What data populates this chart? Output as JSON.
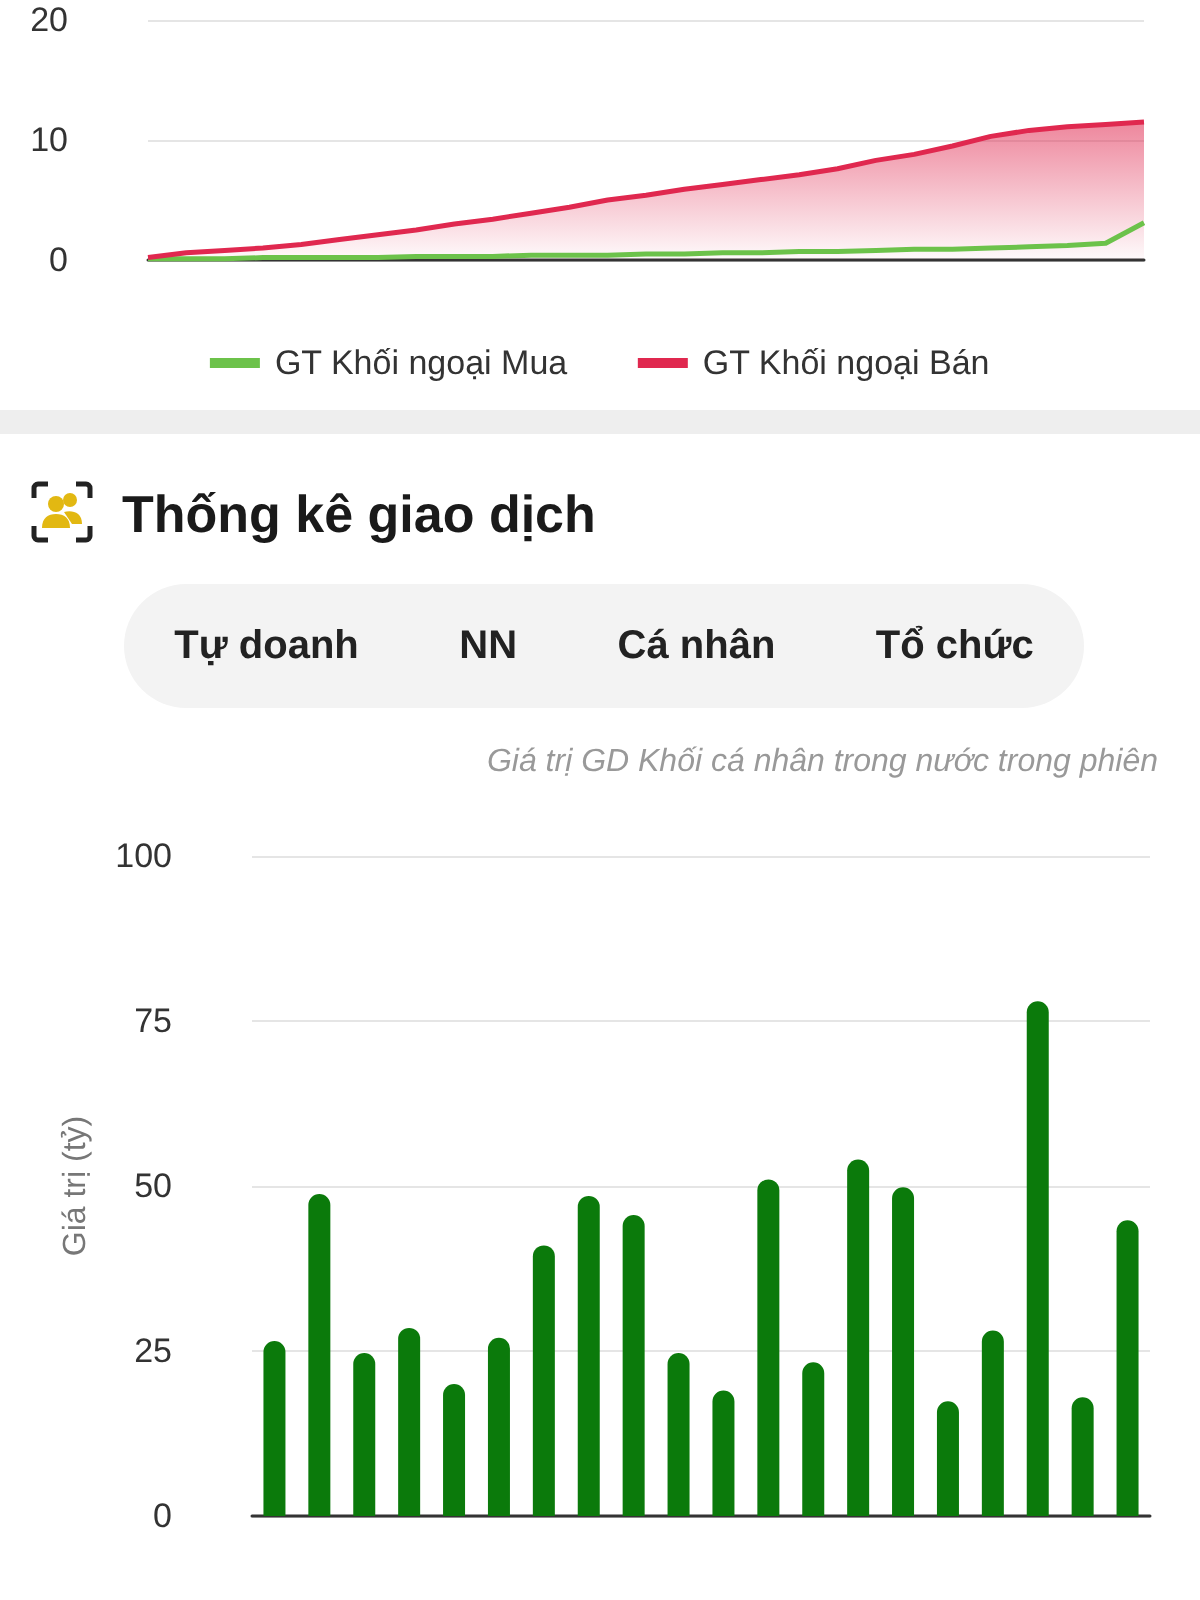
{
  "chart_data": [
    {
      "type": "line",
      "categories": [
        null,
        null,
        null,
        null,
        null,
        null,
        null,
        null,
        null,
        null,
        null,
        null,
        null,
        null,
        null,
        null,
        null,
        null,
        null,
        null,
        null,
        null,
        null,
        null,
        null,
        null,
        null
      ],
      "series": [
        {
          "name": "GT Khối ngoại Mua",
          "color": "#6cc24a",
          "type": "line",
          "values": [
            0.1,
            0.1,
            0.1,
            0.2,
            0.2,
            0.2,
            0.2,
            0.3,
            0.3,
            0.3,
            0.4,
            0.4,
            0.4,
            0.5,
            0.5,
            0.6,
            0.6,
            0.7,
            0.7,
            0.8,
            0.9,
            0.9,
            1.0,
            1.1,
            1.2,
            1.4,
            3.1
          ]
        },
        {
          "name": "GT Khối ngoại Bán",
          "color": "#e0284f",
          "type": "area",
          "values": [
            0.2,
            0.6,
            0.8,
            1.0,
            1.3,
            1.7,
            2.1,
            2.5,
            3.0,
            3.4,
            3.9,
            4.4,
            5.0,
            5.4,
            5.9,
            6.3,
            6.7,
            7.1,
            7.6,
            8.3,
            8.8,
            9.5,
            10.3,
            10.8,
            11.1,
            11.3,
            11.5
          ]
        }
      ],
      "ylim": [
        0,
        20
      ],
      "yticks": [
        0,
        10,
        20
      ],
      "grid": "y",
      "legend": "bottom",
      "tick_labels": "y"
    },
    {
      "type": "bar",
      "title": "Thống kê giao dịch",
      "subtitle": "Giá trị GD Khối cá nhân trong nước trong phiên",
      "ylabel": "Giá trị (tỷ)",
      "annotations": [
        "Tự doanh",
        "NN",
        "Cá nhân",
        "Tổ chức"
      ],
      "categories": [
        null,
        null,
        null,
        null,
        null,
        null,
        null,
        null,
        null,
        null,
        null,
        null,
        null,
        null,
        null,
        null,
        null,
        null,
        null,
        null
      ],
      "values": [
        26.5,
        48.8,
        24.7,
        28.5,
        20,
        27,
        41,
        48.5,
        45.6,
        24.7,
        19,
        51,
        23.3,
        54,
        49.8,
        17.4,
        28.1,
        78,
        18,
        44.8
      ],
      "color": "#0b7a0b",
      "ylim": [
        0,
        100
      ],
      "yticks": [
        0,
        25,
        50,
        75,
        100
      ],
      "grid": "y",
      "tick_labels": "y"
    }
  ]
}
